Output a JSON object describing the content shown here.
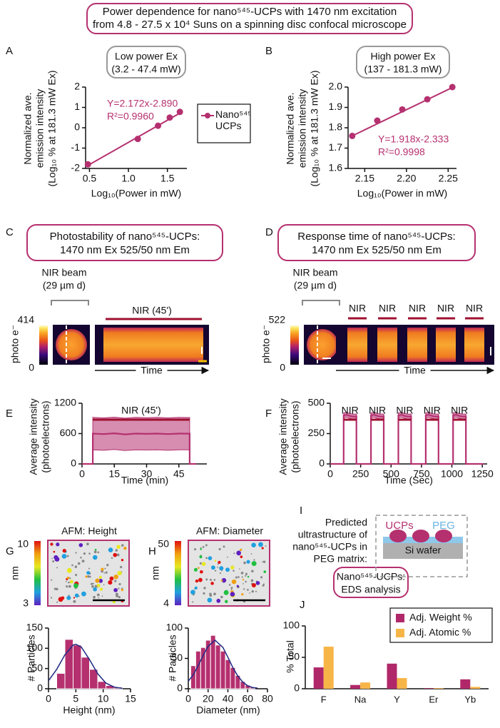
{
  "title": [
    "Power dependence for nano⁵⁴⁵-UCPs with 1470 nm excitation",
    "from 4.8 - 27.5 x 10⁴ Suns on a spinning disc confocal microscope"
  ],
  "panel_labels": [
    "A",
    "B",
    "C",
    "D",
    "E",
    "F",
    "G",
    "H",
    "I",
    "J"
  ],
  "chart_data": [
    {
      "type": "scatter",
      "box_title": [
        "Low power Ex",
        "(3.2 - 47.4 mW)"
      ],
      "ylabel": [
        "Normalized ave.",
        "emission intensity",
        "(Log₁₀ % at 181.3 mW Ex)"
      ],
      "xlabel": "Log₁₀(Power in mW)",
      "series": [
        {
          "name": "Nano⁵⁴⁵-UCPs",
          "color": "#b5306f",
          "x": [
            0.48,
            1.12,
            1.38,
            1.53,
            1.66
          ],
          "values": [
            -1.8,
            -0.55,
            0.1,
            0.5,
            0.78
          ]
        }
      ],
      "fit_line": {
        "x": [
          0.48,
          1.66
        ],
        "y": [
          -1.85,
          0.72
        ]
      },
      "annotations": [
        "Y=2.172x-2.890",
        "R²=0.9960"
      ],
      "xlim": [
        0.45,
        1.75
      ],
      "xticks": [
        0.5,
        {
          "value": 1,
          "label": "1.0"
        },
        1.5
      ],
      "ylim": [
        -2,
        2
      ],
      "yticks": [
        -2,
        -1,
        0,
        1,
        2
      ]
    },
    {
      "type": "scatter",
      "box_title": [
        "High power Ex",
        "(137 - 181.3 mW)"
      ],
      "ylabel": [
        "Normalized ave.",
        "emission intensity",
        "(Log₁₀ % at 181.3 mW Ex)"
      ],
      "xlabel": "Log₁₀(Power in mW)",
      "series": [
        {
          "color": "#b5306f",
          "x": [
            2.135,
            2.165,
            2.195,
            2.225,
            2.255
          ],
          "values": [
            1.76,
            1.835,
            1.89,
            1.94,
            2.0
          ]
        }
      ],
      "fit_line": {
        "x": [
          2.135,
          2.255
        ],
        "y": [
          1.76,
          1.998
        ]
      },
      "annotations": [
        "Y=1.918x-2.333",
        "R²=0.9998"
      ],
      "xlim": [
        2.13,
        2.26
      ],
      "xticks": [
        2.15,
        {
          "value": 2.2,
          "label": "2.20"
        },
        2.25
      ],
      "ylim": [
        1.6,
        2.0
      ],
      "yticks": [
        1.6,
        1.7,
        1.8,
        1.9,
        {
          "value": 2,
          "label": "2.0"
        }
      ]
    },
    {
      "type": "line",
      "ylabel": [
        "Average intensity",
        "(photoelectrons)"
      ],
      "xlabel": "Time (min)",
      "series": [
        {
          "color": "#b5306f",
          "x": [
            0,
            5,
            5,
            10,
            15,
            20,
            25,
            30,
            35,
            40,
            45,
            50,
            50,
            53
          ],
          "values": [
            0,
            0,
            600,
            590,
            605,
            585,
            600,
            595,
            600,
            590,
            600,
            598,
            0,
            0
          ],
          "upper": [
            0,
            0,
            920,
            910,
            925,
            905,
            920,
            915,
            920,
            910,
            920,
            918,
            0,
            0
          ],
          "lower": [
            0,
            0,
            280,
            270,
            285,
            265,
            280,
            275,
            280,
            270,
            280,
            278,
            0,
            0
          ]
        }
      ],
      "stim_labels": [
        "NIR (45')"
      ],
      "on_periods": [
        [
          5,
          50
        ]
      ],
      "xlim": [
        0,
        58
      ],
      "xticks": [
        0,
        15,
        30,
        45
      ],
      "ylim": [
        0,
        1200
      ],
      "yticks": [
        0,
        600,
        1200
      ]
    },
    {
      "type": "line",
      "ylabel": [
        "Average intensity",
        "(photoelectrons)"
      ],
      "xlabel": "Time (Sec)",
      "series": [
        {
          "color": "#b5306f",
          "x": [
            0,
            110,
            110,
            135,
            165,
            190,
            215,
            215,
            335,
            335,
            360,
            390,
            415,
            440,
            440,
            560,
            560,
            585,
            615,
            640,
            665,
            665,
            785,
            785,
            810,
            840,
            865,
            890,
            890,
            1010,
            1010,
            1035,
            1065,
            1090,
            1115,
            1115,
            1260
          ],
          "values": [
            0,
            0,
            400,
            405,
            395,
            390,
            392,
            0,
            0,
            400,
            405,
            395,
            390,
            392,
            0,
            0,
            400,
            405,
            395,
            390,
            392,
            0,
            0,
            400,
            405,
            395,
            390,
            392,
            0,
            0,
            400,
            405,
            395,
            390,
            392,
            0,
            0
          ],
          "upper": [
            0,
            0,
            420,
            425,
            415,
            410,
            412,
            0,
            0,
            420,
            425,
            415,
            410,
            412,
            0,
            0,
            420,
            425,
            415,
            410,
            412,
            0,
            0,
            420,
            425,
            415,
            410,
            412,
            0,
            0,
            420,
            425,
            415,
            410,
            412,
            0,
            0
          ],
          "lower": [
            0,
            0,
            380,
            385,
            375,
            370,
            372,
            0,
            0,
            380,
            385,
            375,
            370,
            372,
            0,
            0,
            380,
            385,
            375,
            370,
            372,
            0,
            0,
            380,
            385,
            375,
            370,
            372,
            0,
            0,
            380,
            385,
            375,
            370,
            372,
            0,
            0
          ]
        }
      ],
      "stim_labels": [
        "NIR",
        "NIR",
        "NIR",
        "NIR",
        "NIR"
      ],
      "on_periods": [
        [
          110,
          215
        ],
        [
          335,
          440
        ],
        [
          560,
          665
        ],
        [
          785,
          890
        ],
        [
          1010,
          1115
        ]
      ],
      "xlim": [
        0,
        1290
      ],
      "xticks": [
        0,
        250,
        500,
        750,
        1000,
        1250
      ],
      "ylim": [
        0,
        500
      ],
      "yticks": [
        0,
        250,
        500
      ]
    },
    {
      "type": "histogram",
      "ylabel": "# Particles",
      "xlabel": "Height (nm)",
      "color": "#b5306f",
      "bins": [
        1.5,
        3,
        4.5,
        6,
        7.5,
        9,
        10.5,
        12,
        13.5
      ],
      "values": [
        38,
        122,
        108,
        78,
        48,
        18,
        8,
        4
      ],
      "fit_curve": {
        "x": [
          0,
          1.5,
          3,
          4.5,
          5,
          6,
          7.5,
          9,
          10.5,
          12,
          13.5
        ],
        "y": [
          20,
          48,
          84,
          108,
          110,
          103,
          72,
          37,
          14,
          4,
          1
        ]
      },
      "xlim": [
        0,
        15
      ],
      "xticks": [
        0,
        5,
        10,
        15
      ],
      "ylim": [
        0,
        150
      ],
      "yticks": [
        0,
        50,
        100,
        150
      ]
    },
    {
      "type": "histogram",
      "ylabel": "# Particles",
      "xlabel": "Diameter (nm)",
      "color": "#b5306f",
      "bins": [
        2.5,
        7.5,
        12.5,
        17.5,
        22.5,
        27.5,
        32.5,
        37.5,
        42.5,
        47.5,
        52.5,
        57.5,
        62.5,
        67.5
      ],
      "values": [
        38,
        62,
        68,
        80,
        88,
        72,
        62,
        48,
        35,
        22,
        12,
        6,
        3
      ],
      "fit_curve": {
        "x": [
          0,
          5,
          10,
          15,
          20,
          27,
          35,
          40,
          45,
          50,
          55,
          60,
          65,
          70
        ],
        "y": [
          12.5,
          23,
          38,
          55,
          70,
          80,
          68,
          52,
          35,
          21,
          11,
          5,
          2,
          1
        ]
      },
      "xlim": [
        0,
        80
      ],
      "xticks": [
        0,
        20,
        40,
        60,
        80
      ],
      "ylim": [
        0,
        100
      ],
      "yticks": [
        0,
        50,
        100
      ]
    },
    {
      "type": "bar",
      "box_title": [
        "Nano⁵⁴⁵-UCPs:",
        "EDS analysis"
      ],
      "ylabel": "% Total",
      "categories": [
        "F",
        "Na",
        "Y",
        "Er",
        "Yb"
      ],
      "series": [
        {
          "name": "Adj. Weight %",
          "color": "#b0286a",
          "values": [
            34,
            6,
            40,
            1,
            15
          ]
        },
        {
          "name": "Adj. Atomic %",
          "color": "#f7b548",
          "values": [
            67,
            10,
            17,
            1,
            3
          ]
        }
      ],
      "legend": "upper right",
      "ylim": [
        0,
        100
      ],
      "yticks": [
        0,
        50,
        100
      ]
    }
  ],
  "images": {
    "C": {
      "box_title": [
        "Photostability of nano⁵⁴⁵-UCPs:",
        "1470 nm Ex 525/50 nm Em"
      ],
      "beam_label": [
        "NIR beam",
        "(29 µm d)"
      ],
      "colorbar_label": "photo e⁻",
      "colorbar_range": [
        0,
        414
      ],
      "stim_labels": [
        "NIR (45')"
      ],
      "time_label": "Time"
    },
    "D": {
      "box_title": [
        "Response time of nano⁵⁴⁵-UCPs:",
        "1470 nm Ex 525/50 nm Em"
      ],
      "beam_label": [
        "NIR beam",
        "(29 µm d)"
      ],
      "colorbar_label": "photo e⁻",
      "colorbar_range": [
        0,
        522
      ],
      "stim_labels": [
        "NIR",
        "NIR",
        "NIR",
        "NIR",
        "NIR"
      ],
      "time_label": "Time"
    },
    "G": {
      "title": "AFM: Height",
      "colorbar_label": "nm",
      "colorbar_range": [
        3,
        10
      ]
    },
    "H": {
      "title": "AFM: Diameter",
      "colorbar_label": "nm",
      "colorbar_range": [
        4,
        50
      ]
    }
  },
  "diagram": {
    "lines": [
      "Predicted",
      "ultrastructure of",
      "nano⁵⁴⁵-UCPs in",
      "PEG matrix:"
    ],
    "ucps": "UCPs",
    "peg": "PEG",
    "wafer": "Si wafer"
  }
}
